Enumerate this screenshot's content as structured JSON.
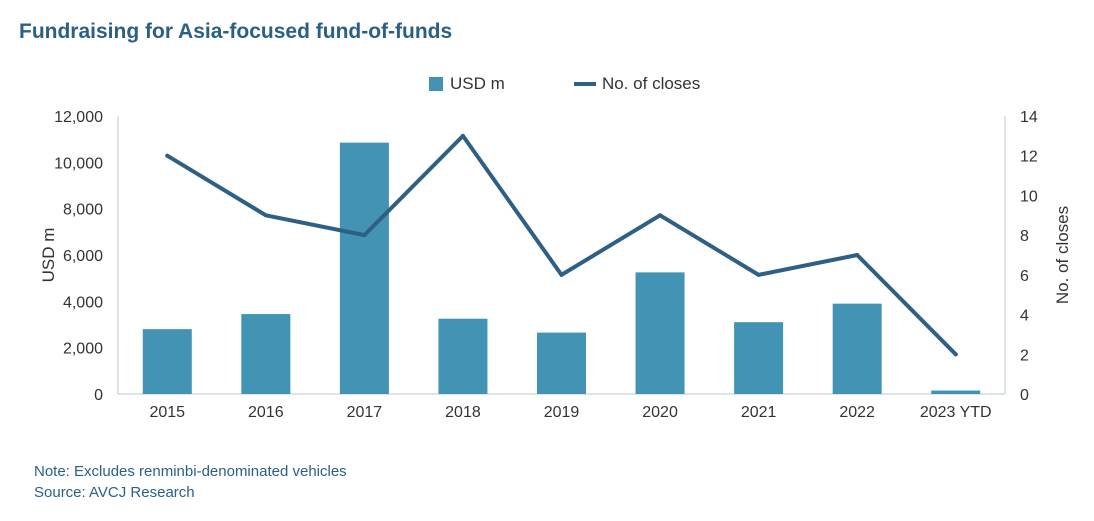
{
  "title": "Fundraising for Asia-focused fund-of-funds",
  "colors": {
    "bar": "#4393b4",
    "line": "#2e5f84",
    "axis": "#b9c9d3",
    "title": "#2a5f86"
  },
  "notes": {
    "note": "Note: Excludes renminbi-denominated vehicles",
    "source": "Source: AVCJ Research"
  },
  "chart_data": {
    "type": "bar+line",
    "categories": [
      "2015",
      "2016",
      "2017",
      "2018",
      "2019",
      "2020",
      "2021",
      "2022",
      "2023 YTD"
    ],
    "series": [
      {
        "name": "USD m",
        "type": "bar",
        "axis": "left",
        "values": [
          2800,
          3450,
          10850,
          3250,
          2650,
          5250,
          3100,
          3900,
          150
        ]
      },
      {
        "name": "No. of closes",
        "type": "line",
        "axis": "right",
        "values": [
          12,
          9,
          8,
          13,
          6,
          9,
          6,
          7,
          2
        ]
      }
    ],
    "ylabel": "USD m",
    "y2label": "No. of closes",
    "ylim": [
      0,
      12000
    ],
    "y2lim": [
      0,
      14
    ],
    "yticks": [
      "0",
      "2,000",
      "4,000",
      "6,000",
      "8,000",
      "10,000",
      "12,000"
    ],
    "y2ticks": [
      "0",
      "2",
      "4",
      "6",
      "8",
      "10",
      "12",
      "14"
    ],
    "legend_position": "top-center"
  }
}
